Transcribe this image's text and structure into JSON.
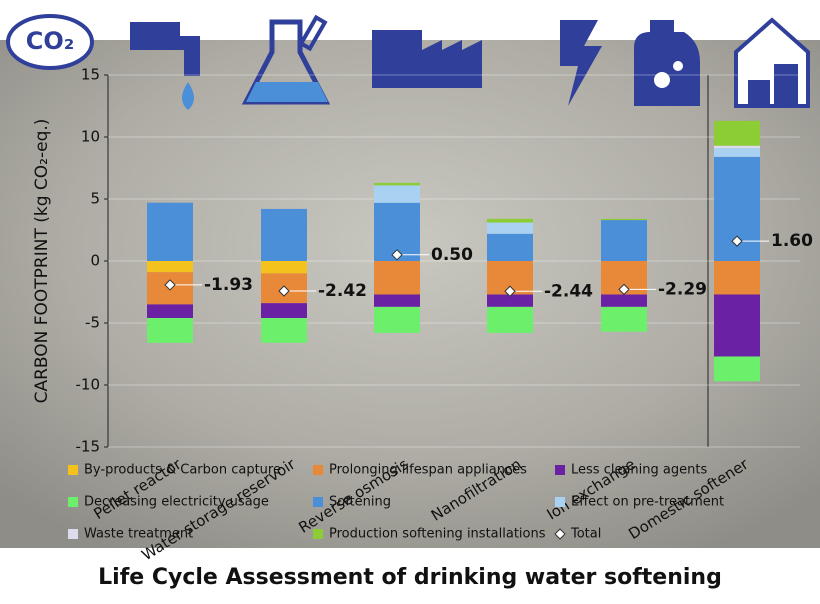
{
  "chart_data": {
    "type": "stacked-bar",
    "title": "Life Cycle Assessment of drinking water softening",
    "y_label": "CARBON FOOTPRINT (kg CO₂-eq.)",
    "badge": "CO₂",
    "categories": [
      "Pellet reactor",
      "Water storage reservoir",
      "Reverse osmosis",
      "Nanofiltration",
      "Ion exchange",
      "Domestic softener"
    ],
    "ylim": [
      -15,
      15
    ],
    "yticks": [
      -15,
      -10,
      -5,
      0,
      5,
      10,
      15
    ],
    "series": [
      {
        "name": "By-products & Carbon capture",
        "color": "#f4c21c",
        "values": [
          -0.9,
          -1.0,
          null,
          null,
          null,
          null
        ]
      },
      {
        "name": "Prolonging lifespan appliances",
        "color": "#e8893a",
        "values": [
          -2.6,
          -2.4,
          -2.7,
          -2.7,
          -2.7,
          -2.7
        ]
      },
      {
        "name": "Less cleaning agents",
        "color": "#6a21a3",
        "values": [
          -1.1,
          -1.2,
          -1.0,
          -1.0,
          -1.0,
          -5.0
        ]
      },
      {
        "name": "Decreasing electricity usage",
        "color": "#6cf06c",
        "values": [
          -2.0,
          -2.0,
          -2.1,
          -2.1,
          -2.0,
          -2.0
        ]
      },
      {
        "name": "Softening",
        "color": "#4a8fd8",
        "values": [
          4.7,
          4.2,
          4.7,
          2.2,
          3.3,
          8.4
        ]
      },
      {
        "name": "Effect on pre-treatment",
        "color": "#a9d2f2",
        "values": [
          null,
          null,
          1.4,
          0.9,
          null,
          0.7
        ]
      },
      {
        "name": "Waste treatment",
        "color": "#dcdcec",
        "values": [
          null,
          null,
          null,
          null,
          null,
          0.2
        ]
      },
      {
        "name": "Production softening installations",
        "color": "#8ccd36",
        "values": [
          null,
          null,
          0.2,
          0.3,
          0.1,
          2.0
        ]
      },
      {
        "name": "Total",
        "color": "#ffffff",
        "marker": "diamond",
        "values": [
          -1.93,
          -2.42,
          0.5,
          -2.44,
          -2.29,
          1.6
        ],
        "value_labels": [
          "-1.93",
          "-2.42",
          "0.50",
          "-2.44",
          "-2.29",
          "1.60"
        ]
      }
    ]
  }
}
